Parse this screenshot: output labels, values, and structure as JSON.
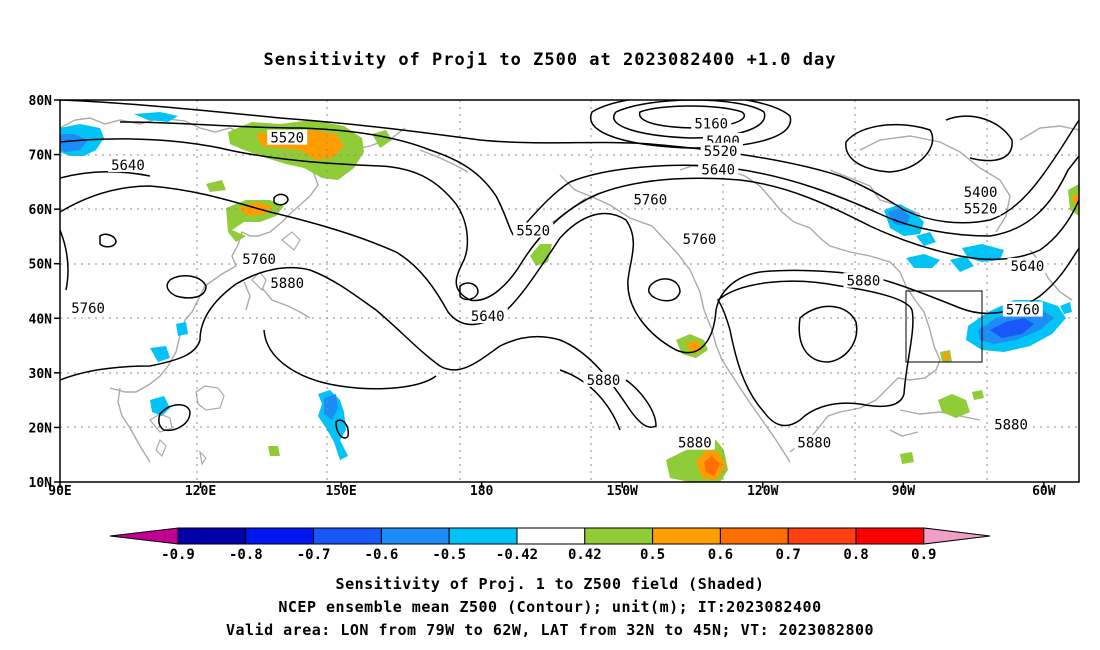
{
  "title": "Sensitivity of Proj1 to Z500 at 2023082400 +1.0 day",
  "map": {
    "lon_range": [
      90,
      307.5
    ],
    "lat_range": [
      10,
      80
    ],
    "lat_ticks": [
      {
        "value": 80,
        "label": "80N"
      },
      {
        "value": 70,
        "label": "70N"
      },
      {
        "value": 60,
        "label": "60N"
      },
      {
        "value": 50,
        "label": "50N"
      },
      {
        "value": 40,
        "label": "40N"
      },
      {
        "value": 30,
        "label": "30N"
      },
      {
        "value": 20,
        "label": "20N"
      },
      {
        "value": 10,
        "label": "10N"
      }
    ],
    "lon_ticks": [
      {
        "value": 90,
        "label": "90E"
      },
      {
        "value": 120,
        "label": "120E"
      },
      {
        "value": 150,
        "label": "150E"
      },
      {
        "value": 180,
        "label": "180"
      },
      {
        "value": 210,
        "label": "150W"
      },
      {
        "value": 240,
        "label": "120W"
      },
      {
        "value": 270,
        "label": "90W"
      },
      {
        "value": 300,
        "label": "60W"
      }
    ],
    "valid_box": {
      "lon": [
        281,
        298
      ],
      "lat": [
        32,
        45
      ]
    },
    "contour_labels": [
      {
        "text": "5160",
        "lon": 229,
        "lat": 75.7
      },
      {
        "text": "5400",
        "lon": 231.5,
        "lat": 72.5
      },
      {
        "text": "5520",
        "lon": 231,
        "lat": 70.7
      },
      {
        "text": "5640",
        "lon": 230.5,
        "lat": 67.3
      },
      {
        "text": "5760",
        "lon": 216,
        "lat": 61.8
      },
      {
        "text": "5760",
        "lon": 226.5,
        "lat": 54.5
      },
      {
        "text": "5520",
        "lon": 191,
        "lat": 56.1
      },
      {
        "text": "5640",
        "lon": 181.3,
        "lat": 40.4
      },
      {
        "text": "5760",
        "lon": 117.5,
        "lat": 73.5,
        "hidden": true
      },
      {
        "text": "5520",
        "lon": 138.5,
        "lat": 73.1
      },
      {
        "text": "5640",
        "lon": 104.5,
        "lat": 68.1
      },
      {
        "text": "5760",
        "lon": 132.5,
        "lat": 50.9
      },
      {
        "text": "5880",
        "lon": 138.5,
        "lat": 46.5
      },
      {
        "text": "5760",
        "lon": 96,
        "lat": 41.9
      },
      {
        "text": "5880",
        "lon": 206,
        "lat": 28.7
      },
      {
        "text": "5880",
        "lon": 225.5,
        "lat": 17.2
      },
      {
        "text": "5880",
        "lon": 251,
        "lat": 17.2
      },
      {
        "text": "5880",
        "lon": 261.5,
        "lat": 46.9
      },
      {
        "text": "5400",
        "lon": 286.5,
        "lat": 63.1
      },
      {
        "text": "5520",
        "lon": 286.5,
        "lat": 60.1
      },
      {
        "text": "5640",
        "lon": 296.5,
        "lat": 49.6
      },
      {
        "text": "5760",
        "lon": 295.5,
        "lat": 41.6
      },
      {
        "text": "5880",
        "lon": 293,
        "lat": 20.5
      }
    ]
  },
  "colorbar": {
    "labels": [
      "-0.9",
      "-0.8",
      "-0.7",
      "-0.6",
      "-0.5",
      "-0.42",
      "0.42",
      "0.5",
      "0.6",
      "0.7",
      "0.8",
      "0.9"
    ],
    "colors": [
      "#0000a8",
      "#0018f0",
      "#1858f8",
      "#1c8cf6",
      "#00c4f8",
      "#ffffff",
      "#90cc38",
      "#ff9c00",
      "#ff7000",
      "#ff4010",
      "#ff0000"
    ],
    "low_end_color": "#c00090",
    "high_end_color": "#f0a0c8"
  },
  "footer": {
    "line1": "Sensitivity of Proj. 1 to Z500 field (Shaded)",
    "line2": "NCEP ensemble mean Z500 (Contour); unit(m); IT:2023082400",
    "line3": "Valid area: LON from 79W to 62W, LAT from 32N to 45N; VT: 2023082800"
  }
}
